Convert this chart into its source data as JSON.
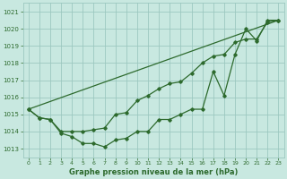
{
  "line1": {
    "x": [
      0,
      1,
      2,
      3,
      4,
      5,
      6,
      7,
      8,
      9,
      10,
      11,
      12,
      13,
      14,
      15,
      16,
      17,
      18,
      19,
      20,
      21,
      22,
      23
    ],
    "y": [
      1015.3,
      1014.8,
      1014.7,
      1013.9,
      1013.7,
      1013.3,
      1013.3,
      1013.1,
      1013.5,
      1013.6,
      1014.0,
      1014.0,
      1014.7,
      1014.7,
      1015.0,
      1015.3,
      1015.3,
      1017.5,
      1016.1,
      1018.5,
      1020.0,
      1019.3,
      1020.5,
      1020.5
    ]
  },
  "line2": {
    "x": [
      0,
      1,
      2,
      3,
      4,
      5,
      6,
      7,
      8,
      9,
      10,
      11,
      12,
      13,
      14,
      15,
      16,
      17,
      18,
      19,
      20,
      21,
      22,
      23
    ],
    "y": [
      1015.3,
      1014.8,
      1014.7,
      1014.0,
      1014.0,
      1014.0,
      1014.1,
      1014.2,
      1015.0,
      1015.1,
      1015.8,
      1016.1,
      1016.5,
      1016.8,
      1016.9,
      1017.4,
      1018.0,
      1018.4,
      1018.5,
      1019.2,
      1019.4,
      1019.4,
      1020.4,
      1020.5
    ]
  },
  "line3": {
    "x": [
      0,
      23
    ],
    "y": [
      1015.3,
      1020.5
    ]
  },
  "background_color": "#c8e8e0",
  "grid_color": "#9cc8c0",
  "line_color": "#2d6a2d",
  "xlabel": "Graphe pression niveau de la mer (hPa)",
  "ylim": [
    1012.5,
    1021.5
  ],
  "xlim": [
    -0.5,
    23.5
  ],
  "yticks": [
    1013,
    1014,
    1015,
    1016,
    1017,
    1018,
    1019,
    1020,
    1021
  ],
  "xticks": [
    0,
    1,
    2,
    3,
    4,
    5,
    6,
    7,
    8,
    9,
    10,
    11,
    12,
    13,
    14,
    15,
    16,
    17,
    18,
    19,
    20,
    21,
    22,
    23
  ]
}
